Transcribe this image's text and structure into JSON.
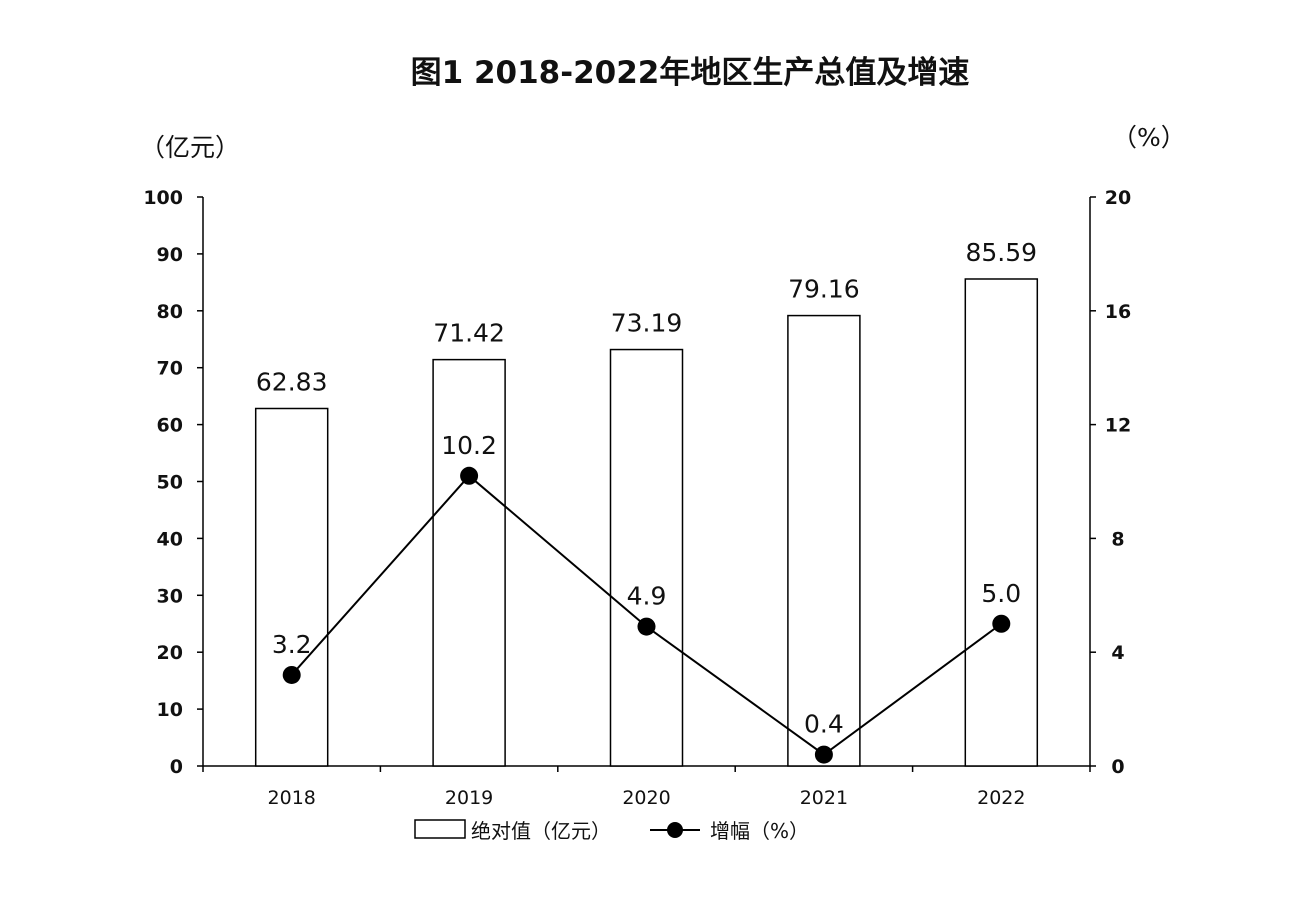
{
  "chart_data": {
    "type": "bar+line",
    "title": "图1 2018-2022年地区生产总值及增速",
    "ylabel_left": "（亿元）",
    "ylabel_right": "（%）",
    "categories": [
      "2018",
      "2019",
      "2020",
      "2021",
      "2022"
    ],
    "series": [
      {
        "name": "绝对值（亿元）",
        "type": "bar",
        "axis": "left",
        "values": [
          62.83,
          71.42,
          73.19,
          79.16,
          85.59
        ],
        "labels": [
          "62.83",
          "71.42",
          "73.19",
          "79.16",
          "85.59"
        ]
      },
      {
        "name": "增幅（%）",
        "type": "line",
        "axis": "right",
        "values": [
          3.2,
          10.2,
          4.9,
          0.4,
          5.0
        ],
        "labels": [
          "3.2",
          "10.2",
          "4.9",
          "0.4",
          "5.0"
        ]
      }
    ],
    "ylim_left": [
      0,
      100
    ],
    "yticks_left": [
      "0",
      "10",
      "20",
      "30",
      "40",
      "50",
      "60",
      "70",
      "80",
      "90",
      "100"
    ],
    "ylim_right": [
      0,
      20
    ],
    "yticks_right": [
      "0",
      "4",
      "8",
      "12",
      "16",
      "20"
    ],
    "grid": false,
    "legend": "bottom",
    "colors": {
      "bar_fill": "#ffffff",
      "bar_stroke": "#000000",
      "line": "#000000"
    }
  }
}
